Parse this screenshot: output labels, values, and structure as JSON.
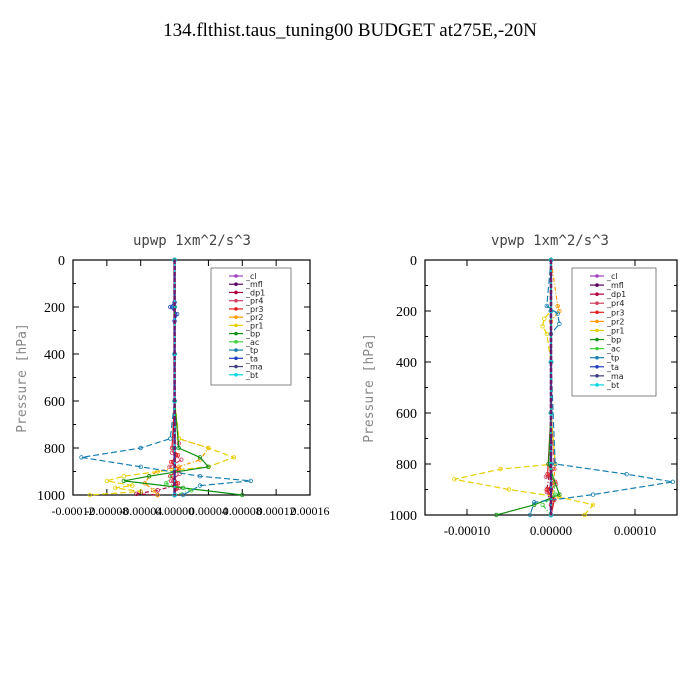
{
  "page": {
    "title": "134.flthist.taus_tuning00  BUDGET at275E,-20N"
  },
  "chart_data": [
    {
      "type": "line",
      "title": "upwp   1xm^2/s^3",
      "ylabel": "Pressure [hPa]",
      "xlabel": "",
      "xlim": [
        -0.00012,
        0.00016
      ],
      "ylim": [
        1000,
        0
      ],
      "y_reversed": true,
      "y_ticks": [
        "0",
        "200",
        "400",
        "600",
        "800",
        "1000"
      ],
      "x_tick_labels": [
        "-0.00012",
        "-0.00008",
        "-0.00004",
        "0.00000",
        "0.00004",
        "0.00008",
        "0.00012",
        "0.00016"
      ],
      "legend": [
        "_cl",
        "_mfl",
        "_dp1",
        "_pr4",
        "_pr3",
        "_pr2",
        "_pr1",
        "_bp",
        "_ac",
        "_tp",
        "_ta",
        "_ma",
        "_bt"
      ],
      "legend_position": "top-right",
      "series": [
        {
          "name": "_cl",
          "color": "#a040c0",
          "x": [
            0,
            0,
            0,
            0,
            0,
            0,
            0
          ],
          "y": [
            0,
            200,
            400,
            600,
            800,
            900,
            1000
          ]
        },
        {
          "name": "_mfl",
          "color": "#5a0060",
          "x": [
            0,
            0,
            0,
            0,
            0,
            0,
            0
          ],
          "y": [
            0,
            200,
            400,
            600,
            800,
            900,
            1000
          ]
        },
        {
          "name": "_dp1",
          "color": "#b00040",
          "x": [
            0,
            0,
            0,
            0,
            0,
            0,
            0,
            0,
            -2e-05,
            -4.5e-05,
            -2e-05
          ],
          "y": [
            0,
            200,
            400,
            600,
            800,
            900,
            940,
            960,
            980,
            995,
            1000
          ]
        },
        {
          "name": "_pr4",
          "color": "#d04060",
          "x": [
            0,
            0,
            0,
            0,
            5e-06,
            -3e-06,
            8e-06,
            -6e-06,
            6e-06,
            -4e-06,
            5e-06,
            0
          ],
          "y": [
            0,
            200,
            400,
            600,
            780,
            820,
            850,
            880,
            910,
            940,
            970,
            1000
          ]
        },
        {
          "name": "_pr3",
          "color": "#e02020",
          "x": [
            0,
            0,
            0,
            0,
            -3e-06,
            4e-06,
            -4e-06,
            5e-06,
            -5e-06,
            4e-06,
            0
          ],
          "y": [
            0,
            200,
            400,
            600,
            800,
            830,
            860,
            890,
            920,
            950,
            1000
          ]
        },
        {
          "name": "_pr2",
          "color": "#ff9900",
          "x": [
            0,
            0,
            0,
            0,
            5e-06,
            4e-05,
            3e-05,
            5e-06,
            -2e-05,
            -3e-05,
            -3.5e-05,
            -2.5e-05,
            -2e-05
          ],
          "y": [
            0,
            200,
            400,
            600,
            760,
            800,
            850,
            880,
            900,
            920,
            950,
            980,
            1000
          ]
        },
        {
          "name": "_pr1",
          "color": "#e8d000",
          "x": [
            0,
            0,
            0,
            0,
            5e-06,
            4e-05,
            7e-05,
            4e-05,
            -2e-05,
            -6e-05,
            -8e-05,
            -5e-05,
            -7e-05,
            -4e-05,
            -0.0001
          ],
          "y": [
            0,
            200,
            400,
            600,
            760,
            800,
            840,
            880,
            900,
            920,
            940,
            960,
            970,
            985,
            1000
          ]
        },
        {
          "name": "_bp",
          "color": "#109010",
          "x": [
            0,
            0,
            0,
            0,
            5e-06,
            3e-05,
            4e-05,
            -3e-05,
            -6e-05,
            1e-05,
            8e-05
          ],
          "y": [
            0,
            200,
            400,
            600,
            800,
            840,
            880,
            920,
            940,
            970,
            1000
          ]
        },
        {
          "name": "_ac",
          "color": "#40d040",
          "x": [
            0,
            0,
            0,
            0,
            0,
            0,
            -1e-05,
            2e-05,
            0
          ],
          "y": [
            0,
            200,
            400,
            600,
            800,
            900,
            950,
            980,
            1000
          ]
        },
        {
          "name": "_tp",
          "color": "#1880b0",
          "x": [
            0,
            0,
            0,
            0,
            -5e-06,
            -4e-05,
            -0.00011,
            -4e-05,
            3e-05,
            9e-05,
            3e-05,
            1e-05
          ],
          "y": [
            0,
            200,
            400,
            600,
            760,
            800,
            840,
            880,
            920,
            940,
            960,
            1000
          ]
        },
        {
          "name": "_ta",
          "color": "#2040c0",
          "x": [
            0,
            0,
            -5e-06,
            3e-06,
            0,
            0,
            0,
            0
          ],
          "y": [
            0,
            180,
            200,
            230,
            260,
            400,
            600,
            1000
          ]
        },
        {
          "name": "_ma",
          "color": "#404080",
          "x": [
            0,
            0,
            0,
            0,
            0,
            0
          ],
          "y": [
            0,
            200,
            400,
            600,
            800,
            1000
          ]
        },
        {
          "name": "_bt",
          "color": "#00d8e0",
          "x": [
            0,
            0,
            0,
            0,
            0,
            0
          ],
          "y": [
            0,
            200,
            400,
            600,
            800,
            1000
          ]
        }
      ]
    },
    {
      "type": "line",
      "title": "vpwp   1xm^2/s^3",
      "ylabel": "Pressure [hPa]",
      "xlabel": "",
      "xlim": [
        -0.00015,
        0.00015
      ],
      "ylim": [
        1000,
        0
      ],
      "y_reversed": true,
      "y_ticks": [
        "0",
        "200",
        "400",
        "600",
        "800",
        "1000"
      ],
      "x_tick_labels": [
        "-0.00010",
        "0.00000",
        "0.00010"
      ],
      "legend": [
        "_cl",
        "_mfl",
        "_dp1",
        "_pr4",
        "_pr3",
        "_pr2",
        "_pr1",
        "_bp",
        "_ac",
        "_tp",
        "_ta",
        "_ma",
        "_bt"
      ],
      "legend_position": "top-right",
      "series": [
        {
          "name": "_cl",
          "color": "#a040c0",
          "x": [
            0,
            0,
            0,
            0,
            0,
            0,
            0
          ],
          "y": [
            0,
            200,
            400,
            600,
            800,
            900,
            1000
          ]
        },
        {
          "name": "_mfl",
          "color": "#5a0060",
          "x": [
            0,
            0,
            0,
            0,
            0,
            0,
            0
          ],
          "y": [
            0,
            200,
            400,
            600,
            800,
            900,
            1000
          ]
        },
        {
          "name": "_dp1",
          "color": "#b00040",
          "x": [
            0,
            0,
            0,
            0,
            0,
            -5e-06,
            0,
            0
          ],
          "y": [
            0,
            200,
            400,
            600,
            800,
            900,
            960,
            1000
          ]
        },
        {
          "name": "_pr4",
          "color": "#d04060",
          "x": [
            0,
            0,
            0,
            0,
            4e-06,
            -6e-06,
            6e-06,
            -5e-06,
            4e-06,
            0
          ],
          "y": [
            0,
            200,
            400,
            600,
            820,
            850,
            880,
            910,
            940,
            1000
          ]
        },
        {
          "name": "_pr3",
          "color": "#e02020",
          "x": [
            0,
            0,
            0,
            0,
            -4e-06,
            5e-06,
            -5e-06,
            4e-06,
            0
          ],
          "y": [
            0,
            200,
            400,
            600,
            840,
            870,
            900,
            940,
            1000
          ]
        },
        {
          "name": "_pr2",
          "color": "#ff9900",
          "x": [
            0,
            8e-06,
            1e-05,
            0,
            0,
            0,
            5e-06,
            0
          ],
          "y": [
            0,
            180,
            200,
            240,
            400,
            600,
            800,
            1000
          ]
        },
        {
          "name": "_pr1",
          "color": "#e8d000",
          "x": [
            0,
            0,
            -8e-06,
            -1e-05,
            -5e-06,
            0,
            0,
            5e-06,
            -6e-05,
            -0.000115,
            -5e-05,
            1e-05,
            5e-05,
            4e-05
          ],
          "y": [
            0,
            200,
            230,
            260,
            290,
            400,
            600,
            800,
            820,
            860,
            900,
            930,
            960,
            1000
          ]
        },
        {
          "name": "_bp",
          "color": "#109010",
          "x": [
            0,
            0,
            0,
            0,
            -3e-06,
            1e-05,
            -2e-05,
            -6.5e-05
          ],
          "y": [
            0,
            200,
            400,
            600,
            800,
            920,
            960,
            1000
          ]
        },
        {
          "name": "_ac",
          "color": "#40d040",
          "x": [
            0,
            0,
            0,
            0,
            0,
            5e-06,
            -1e-05,
            0
          ],
          "y": [
            0,
            200,
            400,
            600,
            800,
            920,
            960,
            1000
          ]
        },
        {
          "name": "_tp",
          "color": "#1880b0",
          "x": [
            0,
            -5e-06,
            8e-06,
            1e-05,
            0,
            0,
            5e-06,
            9e-05,
            0.000145,
            5e-05,
            -2e-05,
            -2.5e-05
          ],
          "y": [
            0,
            180,
            210,
            250,
            290,
            400,
            800,
            840,
            870,
            920,
            950,
            1000
          ]
        },
        {
          "name": "_ta",
          "color": "#2040c0",
          "x": [
            0,
            0,
            0,
            0,
            0,
            0
          ],
          "y": [
            0,
            200,
            400,
            600,
            800,
            1000
          ]
        },
        {
          "name": "_ma",
          "color": "#404080",
          "x": [
            0,
            0,
            0,
            0,
            0,
            0
          ],
          "y": [
            0,
            200,
            400,
            600,
            800,
            1000
          ]
        },
        {
          "name": "_bt",
          "color": "#00d8e0",
          "x": [
            0,
            0,
            0,
            0,
            0,
            0
          ],
          "y": [
            0,
            200,
            400,
            600,
            800,
            1000
          ]
        }
      ]
    }
  ]
}
